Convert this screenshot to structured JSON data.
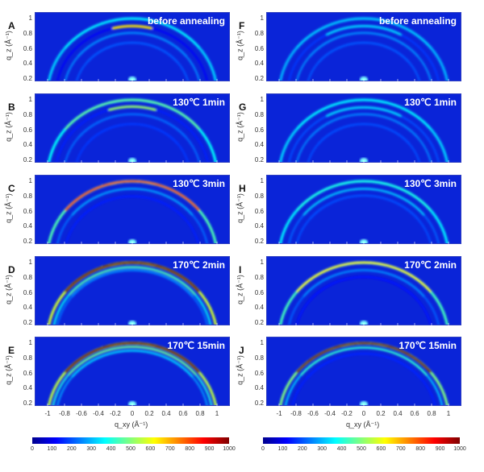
{
  "chart_data": {
    "type": "heatmap",
    "xlabel": "q_xy (Å⁻¹)",
    "ylabel": "q_z (Å⁻¹)",
    "xticks": [
      "-1",
      "-0.8",
      "-0.6",
      "-0.4",
      "-0.2",
      "0",
      "0.2",
      "0.4",
      "0.6",
      "0.8",
      "1"
    ],
    "yticks": [
      "0.2",
      "0.4",
      "0.6",
      "0.8",
      "1"
    ],
    "xlim": [
      -1.15,
      1.15
    ],
    "ylim": [
      0.15,
      1.08
    ],
    "colorbar": {
      "range": [
        0,
        1000
      ],
      "ticks": [
        "0",
        "100",
        "200",
        "300",
        "400",
        "500",
        "600",
        "700",
        "800",
        "900",
        "1000"
      ],
      "colormap": "jet"
    },
    "panels": [
      {
        "label": "A",
        "annotation": "before annealing",
        "rings": [
          {
            "q": 1.0,
            "i": 330,
            "top": 360
          },
          {
            "q": 0.9,
            "i": 120,
            "top": 650,
            "span": 0.25
          },
          {
            "q": 0.81,
            "i": 260,
            "top": 260
          },
          {
            "q": 0.68,
            "i": 210,
            "top": 210
          }
        ]
      },
      {
        "label": "B",
        "annotation": "130℃ 1min",
        "rings": [
          {
            "q": 1.0,
            "i": 380,
            "top": 470
          },
          {
            "q": 0.91,
            "i": 150,
            "top": 520,
            "span": 0.3
          },
          {
            "q": 0.81,
            "i": 230,
            "top": 230
          },
          {
            "q": 0.68,
            "i": 180,
            "top": 180
          }
        ]
      },
      {
        "label": "C",
        "annotation": "130℃ 3min",
        "rings": [
          {
            "q": 1.0,
            "i": 450,
            "top": 800
          },
          {
            "q": 0.9,
            "i": 230,
            "top": 280
          },
          {
            "q": 0.8,
            "i": 150,
            "top": 150
          }
        ]
      },
      {
        "label": "D",
        "annotation": "170℃ 2min",
        "rings": [
          {
            "q": 1.0,
            "i": 580,
            "top": 1000
          },
          {
            "q": 0.94,
            "i": 380,
            "top": 450
          },
          {
            "q": 0.9,
            "i": 230,
            "top": 260
          }
        ]
      },
      {
        "label": "E",
        "annotation": "170℃ 15min",
        "rings": [
          {
            "q": 1.0,
            "i": 560,
            "top": 1000
          },
          {
            "q": 0.95,
            "i": 400,
            "top": 480
          },
          {
            "q": 0.9,
            "i": 280,
            "top": 330
          }
        ]
      },
      {
        "label": "F",
        "annotation": "before annealing",
        "rings": [
          {
            "q": 1.0,
            "i": 300,
            "top": 320
          },
          {
            "q": 0.9,
            "i": 180,
            "top": 330,
            "span": 0.5
          },
          {
            "q": 0.81,
            "i": 260,
            "top": 260
          },
          {
            "q": 0.68,
            "i": 210,
            "top": 210
          }
        ]
      },
      {
        "label": "G",
        "annotation": "130℃ 1min",
        "rings": [
          {
            "q": 1.0,
            "i": 330,
            "top": 360
          },
          {
            "q": 0.9,
            "i": 200,
            "top": 330,
            "span": 0.5
          },
          {
            "q": 0.81,
            "i": 250,
            "top": 250
          },
          {
            "q": 0.68,
            "i": 200,
            "top": 200
          }
        ]
      },
      {
        "label": "H",
        "annotation": "130℃ 3min",
        "rings": [
          {
            "q": 1.0,
            "i": 360,
            "top": 400
          },
          {
            "q": 0.9,
            "i": 220,
            "top": 320
          },
          {
            "q": 0.81,
            "i": 200,
            "top": 200
          }
        ]
      },
      {
        "label": "I",
        "annotation": "170℃ 2min",
        "rings": [
          {
            "q": 1.0,
            "i": 440,
            "top": 620
          },
          {
            "q": 0.9,
            "i": 220,
            "top": 260
          },
          {
            "q": 0.81,
            "i": 140,
            "top": 140
          }
        ]
      },
      {
        "label": "J",
        "annotation": "170℃ 15min",
        "rings": [
          {
            "q": 1.0,
            "i": 500,
            "top": 1000
          },
          {
            "q": 0.94,
            "i": 330,
            "top": 420
          },
          {
            "q": 0.86,
            "i": 150,
            "top": 160
          }
        ]
      }
    ]
  }
}
